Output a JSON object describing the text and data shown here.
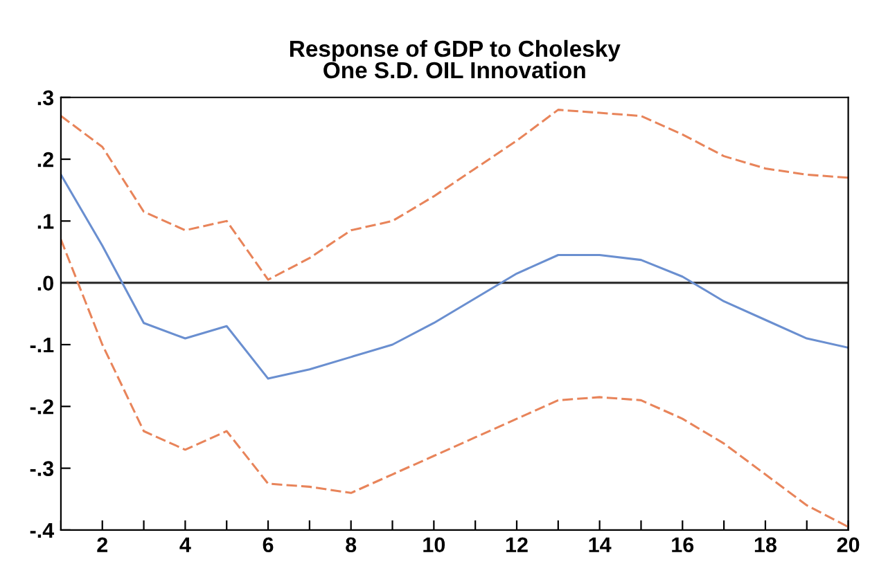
{
  "chart_data": {
    "type": "line",
    "title": "Response of GDP to Cholesky\nOne S.D. OIL Innovation",
    "x": [
      1,
      2,
      3,
      4,
      5,
      6,
      7,
      8,
      9,
      10,
      11,
      12,
      13,
      14,
      15,
      16,
      17,
      18,
      19,
      20
    ],
    "series": [
      {
        "color": "#e8845a",
        "line_style": "dashed",
        "values": [
          0.27,
          0.22,
          0.115,
          0.085,
          0.1,
          0.005,
          0.04,
          0.085,
          0.1,
          0.14,
          0.185,
          0.23,
          0.28,
          0.275,
          0.27,
          0.24,
          0.205,
          0.185,
          0.175,
          0.17
        ]
      },
      {
        "color": "#6a8fd0",
        "line_style": "solid",
        "values": [
          0.175,
          0.06,
          -0.065,
          -0.09,
          -0.07,
          -0.155,
          -0.14,
          -0.12,
          -0.1,
          -0.065,
          -0.025,
          0.015,
          0.045,
          0.045,
          0.037,
          0.01,
          -0.03,
          -0.06,
          -0.09,
          -0.105
        ]
      },
      {
        "color": "#e8845a",
        "line_style": "dashed",
        "values": [
          0.07,
          -0.1,
          -0.24,
          -0.27,
          -0.24,
          -0.325,
          -0.33,
          -0.34,
          -0.31,
          -0.28,
          -0.25,
          -0.22,
          -0.19,
          -0.185,
          -0.19,
          -0.22,
          -0.26,
          -0.31,
          -0.36,
          -0.395
        ]
      }
    ],
    "xlim": [
      1,
      20
    ],
    "xticks": [
      {
        "value": 1,
        "label": null
      },
      2,
      {
        "value": 3,
        "label": null
      },
      4,
      {
        "value": 5,
        "label": null
      },
      6,
      {
        "value": 7,
        "label": null
      },
      8,
      {
        "value": 9,
        "label": null
      },
      10,
      {
        "value": 11,
        "label": null
      },
      12,
      {
        "value": 13,
        "label": null
      },
      14,
      {
        "value": 15,
        "label": null
      },
      16,
      {
        "value": 17,
        "label": null
      },
      18,
      {
        "value": 19,
        "label": null
      },
      20
    ],
    "ylim": [
      -0.4,
      0.3
    ],
    "yticks": [
      {
        "value": -0.4,
        "label": "-.4"
      },
      {
        "value": -0.3,
        "label": "-.3"
      },
      {
        "value": -0.2,
        "label": "-.2"
      },
      {
        "value": -0.1,
        "label": "-.1"
      },
      {
        "value": 0,
        "label": ".0"
      },
      {
        "value": 0.1,
        "label": ".1"
      },
      {
        "value": 0.2,
        "label": ".2"
      },
      {
        "value": 0.3,
        "label": ".3"
      }
    ],
    "ref_lines": [
      {
        "axis": "y",
        "value": 0,
        "color": "#333333",
        "line_style": "solid"
      }
    ],
    "grid": false,
    "legend": false,
    "marker": "none"
  }
}
